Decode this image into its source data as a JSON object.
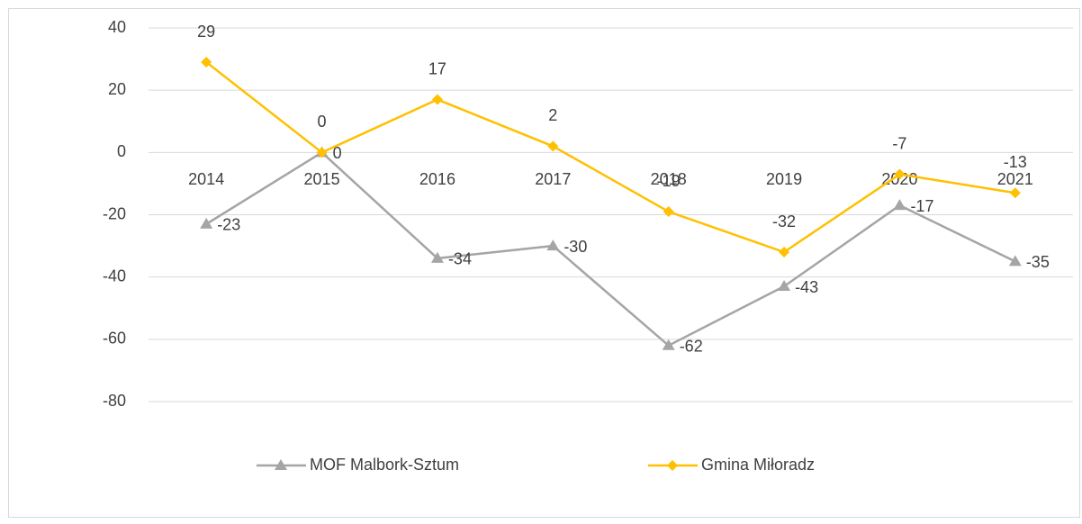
{
  "chart_data": {
    "type": "line",
    "categories": [
      "2014",
      "2015",
      "2016",
      "2017",
      "2018",
      "2019",
      "2020",
      "2021"
    ],
    "series": [
      {
        "name": "MOF Malbork-Sztum",
        "color": "#a5a5a5",
        "marker": "triangle",
        "values": [
          -23,
          0,
          -34,
          -30,
          -62,
          -43,
          -17,
          -35
        ]
      },
      {
        "name": "Gmina Miłoradz",
        "color": "#ffc000",
        "marker": "diamond",
        "values": [
          29,
          0,
          17,
          2,
          -19,
          -32,
          -7,
          -13
        ]
      }
    ],
    "ylim": [
      -80,
      40
    ],
    "yticks": [
      40,
      20,
      0,
      -20,
      -40,
      -60,
      -80
    ],
    "grid": true,
    "legend": "bottom"
  }
}
